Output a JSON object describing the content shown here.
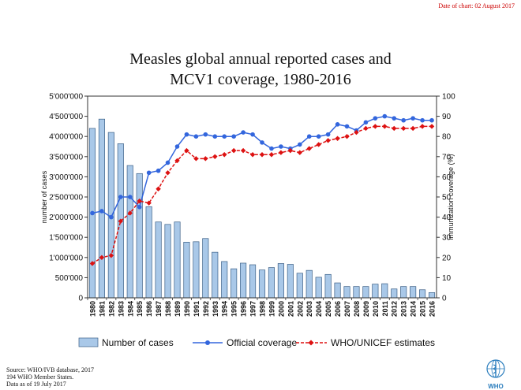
{
  "header": {
    "date_note": "Date of chart: 02 August 2017"
  },
  "chart_data": {
    "type": "bar",
    "title_line1": "Measles global annual reported cases and",
    "title_line2": "MCV1 coverage, 1980-2016",
    "ylabel_left": "number of cases",
    "ylabel_right": "immunization coverage (%)",
    "ylim_left": [
      0,
      5000000
    ],
    "ylim_right": [
      0,
      100
    ],
    "left_ticks": [
      "0",
      "500'000",
      "1'000'000",
      "1'500'000",
      "2'000'000",
      "2'500'000",
      "3'000'000",
      "3'500'000",
      "4'000'000",
      "4'500'000",
      "5'000'000"
    ],
    "right_ticks": [
      "0",
      "10",
      "20",
      "30",
      "40",
      "50",
      "60",
      "70",
      "80",
      "90",
      "100"
    ],
    "grid": false,
    "legend_position": "bottom",
    "categories": [
      "1980",
      "1981",
      "1982",
      "1983",
      "1984",
      "1985",
      "1986",
      "1987",
      "1988",
      "1989",
      "1990",
      "1991",
      "1992",
      "1993",
      "1994",
      "1995",
      "1996",
      "1997",
      "1998",
      "1999",
      "2000",
      "2001",
      "2002",
      "2003",
      "2004",
      "2005",
      "2006",
      "2007",
      "2008",
      "2009",
      "2010",
      "2011",
      "2012",
      "2013",
      "2014",
      "2015",
      "2016"
    ],
    "series": [
      {
        "name": "Number of cases",
        "type": "bar",
        "axis": "left",
        "color": "#a9c8e8",
        "values": [
          4200000,
          4430000,
          4100000,
          3820000,
          3280000,
          3080000,
          2260000,
          1880000,
          1820000,
          1880000,
          1380000,
          1390000,
          1470000,
          1130000,
          900000,
          720000,
          860000,
          820000,
          690000,
          750000,
          850000,
          830000,
          610000,
          680000,
          510000,
          580000,
          370000,
          280000,
          280000,
          280000,
          340000,
          350000,
          220000,
          280000,
          280000,
          200000,
          130000
        ]
      },
      {
        "name": "Official coverage",
        "type": "line",
        "axis": "right",
        "color": "#3366dd",
        "values": [
          42,
          43,
          40,
          50,
          50,
          45,
          62,
          63,
          67,
          75,
          81,
          80,
          81,
          80,
          80,
          80,
          82,
          81,
          77,
          74,
          75,
          74,
          76,
          80,
          80,
          81,
          86,
          85,
          83,
          87,
          89,
          90,
          89,
          88,
          89,
          88,
          88
        ]
      },
      {
        "name": "WHO/UNICEF estimates",
        "type": "line",
        "axis": "right",
        "color": "#dd1111",
        "values": [
          17,
          20,
          21,
          38,
          42,
          48,
          47,
          54,
          62,
          68,
          73,
          69,
          69,
          70,
          71,
          73,
          73,
          71,
          71,
          71,
          72,
          73,
          72,
          74,
          76,
          78,
          79,
          80,
          82,
          84,
          85,
          85,
          84,
          84,
          84,
          85,
          85
        ]
      }
    ]
  },
  "source": {
    "line1": "Source:  WHO/IVB database,  2017",
    "line2": "194 WHO Member States.",
    "line3": "Data as of 19 July 2017"
  },
  "logo": {
    "text": "WHO",
    "icon": "who-emblem-icon",
    "color": "#2a7dbd"
  }
}
